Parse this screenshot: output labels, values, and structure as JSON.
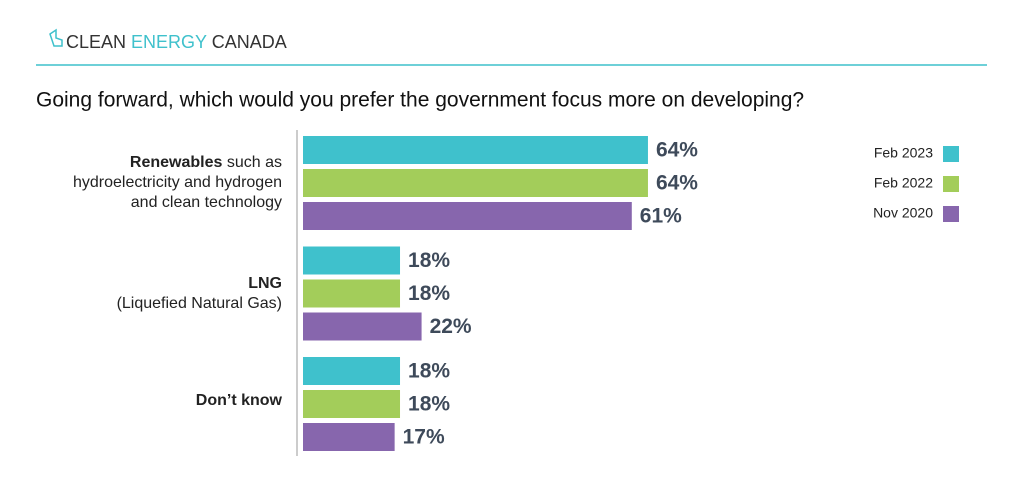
{
  "logo": {
    "parts": [
      "CLEAN",
      "ENERGY",
      "CANADA"
    ]
  },
  "chart_data": {
    "type": "hbar",
    "title": "Going forward, which would you prefer the government focus more on developing?",
    "categories": [
      {
        "label": "Renewables",
        "detail": "such as hydroelectricity and hydrogen and clean technology"
      },
      {
        "label": "LNG",
        "detail": "(Liquefied Natural Gas)"
      },
      {
        "label": "Don’t know"
      }
    ],
    "series": [
      {
        "name": "Feb 2023",
        "color": "#3fc1cc",
        "values": [
          64,
          18,
          18
        ],
        "value_labels": [
          "64%",
          "18%",
          "18%"
        ]
      },
      {
        "name": "Feb 2022",
        "color": "#a3cd5a",
        "values": [
          64,
          18,
          18
        ],
        "value_labels": [
          "64%",
          "18%",
          "18%"
        ]
      },
      {
        "name": "Nov 2020",
        "color": "#8766ad",
        "values": [
          61,
          22,
          17
        ],
        "value_labels": [
          "61%",
          "22%",
          "17%"
        ]
      }
    ],
    "legend": "top-right"
  }
}
